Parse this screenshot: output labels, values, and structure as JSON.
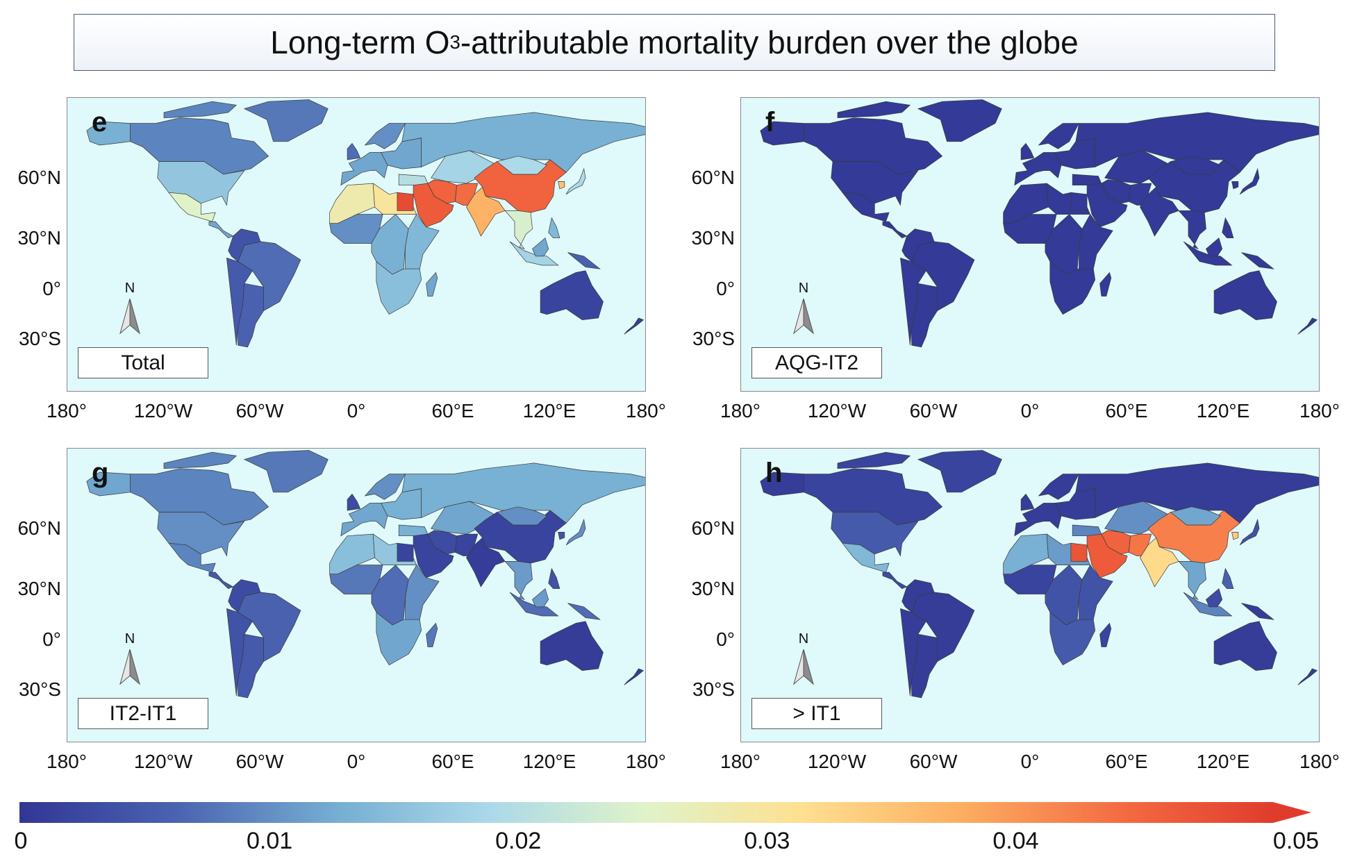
{
  "title": {
    "prefix": "Long-term O",
    "sub": "3",
    "suffix": "-attributable mortality burden over the globe"
  },
  "lat_labels": [
    "60°N",
    "30°N",
    "0°",
    "30°S"
  ],
  "lon_labels": [
    "180°",
    "120°W",
    "60°W",
    "0°",
    "60°E",
    "120°E",
    "180°"
  ],
  "north_label": "N",
  "panels": [
    {
      "letter": "e",
      "label": "Total"
    },
    {
      "letter": "f",
      "label": "AQG-IT2"
    },
    {
      "letter": "g",
      "label": "IT2-IT1"
    },
    {
      "letter": "h",
      "label": "> IT1"
    }
  ],
  "colorbar": {
    "ticks": [
      "0",
      "0.01",
      "0.02",
      "0.03",
      "0.04",
      "0.05"
    ],
    "min": 0,
    "max": 0.05,
    "extend": "max",
    "colors": [
      "#313695",
      "#4a63b0",
      "#74add1",
      "#abd9e9",
      "#e0f3c8",
      "#fee090",
      "#fdae61",
      "#f46d43",
      "#e03c2c"
    ]
  },
  "colors": {
    "ocean": "#e0f9fa",
    "border": "#3a3a3a"
  }
}
